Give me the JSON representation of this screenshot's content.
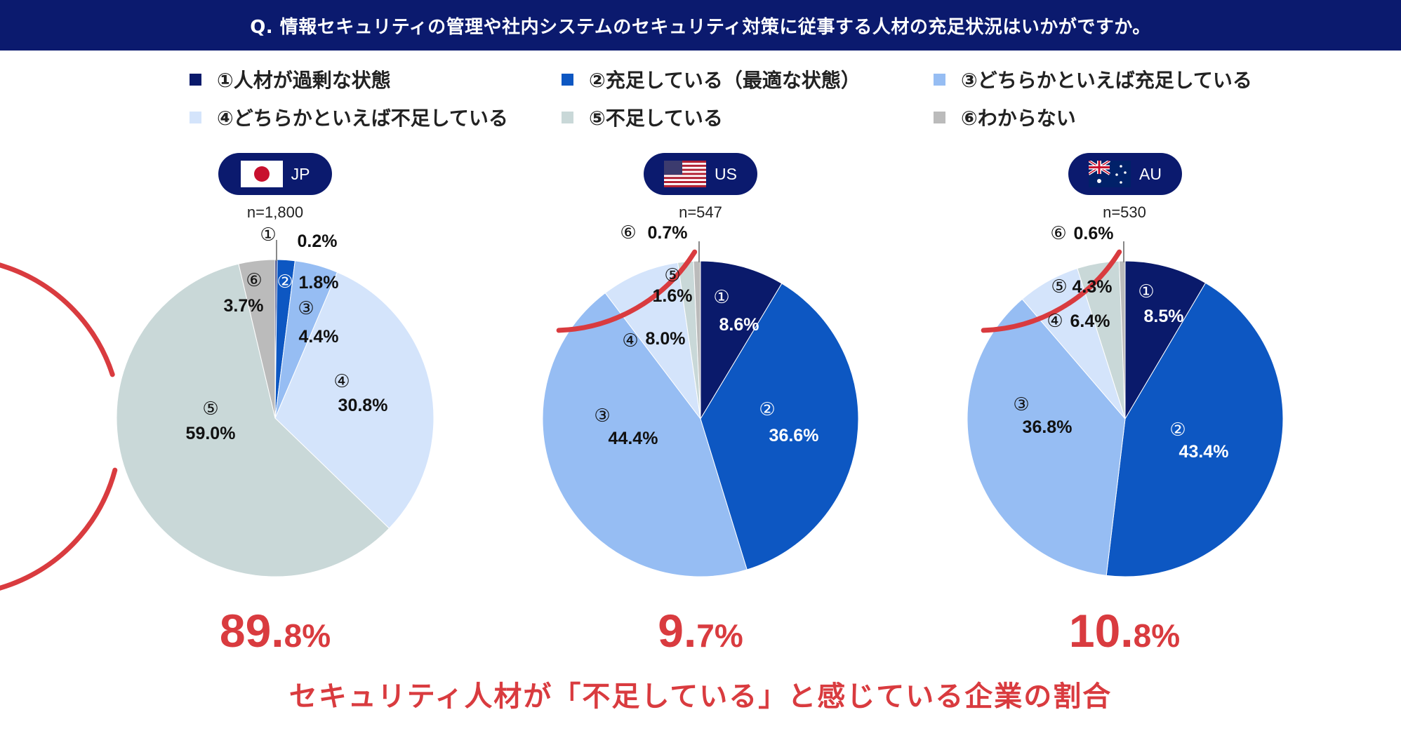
{
  "header": {
    "question": "Q. 情報セキュリティの管理や社内システムのセキュリティ対策に従事する人材の充足状況はいかがですか。"
  },
  "legend": [
    {
      "label": "①人材が過剰な状態",
      "color": "#0a1a6b"
    },
    {
      "label": "②充足している（最適な状態）",
      "color": "#0d57c2"
    },
    {
      "label": "③どちらかといえば充足している",
      "color": "#96bdf3"
    },
    {
      "label": "④どちらかといえば不足している",
      "color": "#d4e4fb"
    },
    {
      "label": "⑤不足している",
      "color": "#c9d8d8"
    },
    {
      "label": "⑥わからない",
      "color": "#bbbbbb"
    }
  ],
  "chart_data": [
    {
      "type": "pie",
      "country": "JP",
      "n_label": "n=1,800",
      "categories": [
        "①",
        "②",
        "③",
        "④",
        "⑤",
        "⑥"
      ],
      "values": [
        0.2,
        1.8,
        4.4,
        30.8,
        59.0,
        3.7
      ],
      "value_labels": [
        "0.2%",
        "1.8%",
        "4.4%",
        "30.8%",
        "59.0%",
        "3.7%"
      ],
      "shortage_total": {
        "int": "89.",
        "dec": "8%"
      }
    },
    {
      "type": "pie",
      "country": "US",
      "n_label": "n=547",
      "categories": [
        "①",
        "②",
        "③",
        "④",
        "⑤",
        "⑥"
      ],
      "values": [
        8.6,
        36.6,
        44.4,
        8.0,
        1.6,
        0.7
      ],
      "value_labels": [
        "8.6%",
        "36.6%",
        "44.4%",
        "8.0%",
        "1.6%",
        "0.7%"
      ],
      "shortage_total": {
        "int": "9.",
        "dec": "7%"
      }
    },
    {
      "type": "pie",
      "country": "AU",
      "n_label": "n=530",
      "categories": [
        "①",
        "②",
        "③",
        "④",
        "⑤",
        "⑥"
      ],
      "values": [
        8.5,
        43.4,
        36.8,
        6.4,
        4.3,
        0.6
      ],
      "value_labels": [
        "8.5%",
        "43.4%",
        "36.8%",
        "6.4%",
        "4.3%",
        "0.6%"
      ],
      "shortage_total": {
        "int": "10.",
        "dec": "8%"
      }
    }
  ],
  "footer": {
    "caption": "セキュリティ人材が「不足している」と感じている企業の割合"
  },
  "colors": {
    "title_bg": "#0b1a6e",
    "accent_red": "#d93b3f",
    "pill_bg": "#0b1a6e"
  }
}
